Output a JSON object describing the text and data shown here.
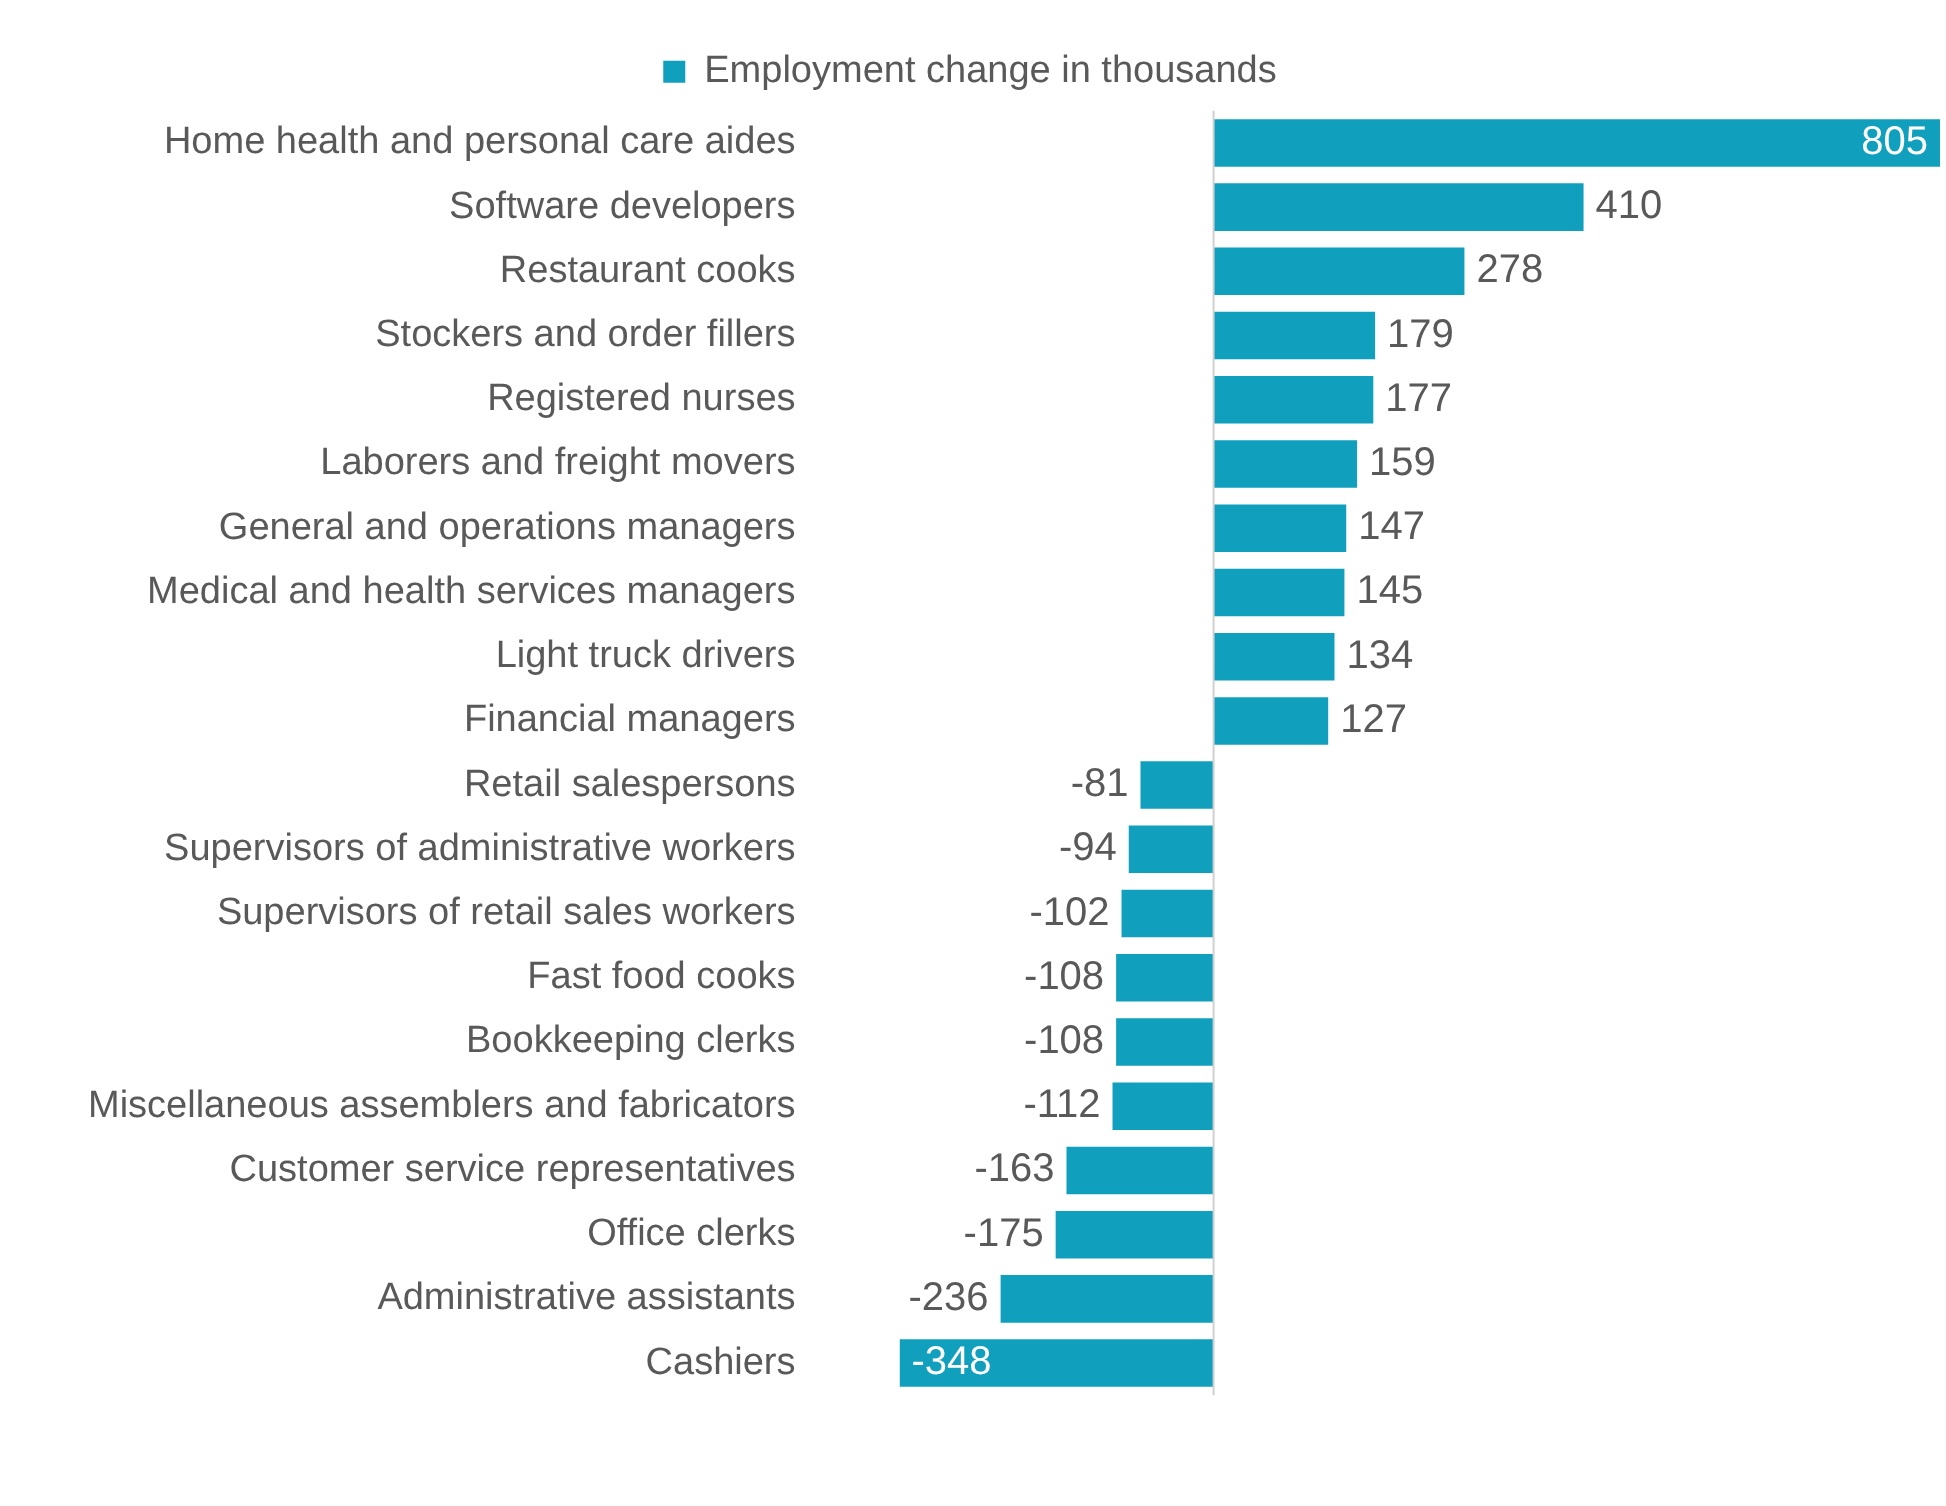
{
  "chart_data": {
    "type": "bar",
    "orientation": "horizontal",
    "categories": [
      "Home health and personal care aides",
      "Software developers",
      "Restaurant cooks",
      "Stockers and order fillers",
      "Registered nurses",
      "Laborers and freight movers",
      "General and operations managers",
      "Medical and health services managers",
      "Light truck drivers",
      "Financial managers",
      "Retail salespersons",
      "Supervisors of administrative workers",
      "Supervisors of retail sales workers",
      "Fast food cooks",
      "Bookkeeping clerks",
      "Miscellaneous assemblers and fabricators",
      "Customer service representatives",
      "Office clerks",
      "Administrative assistants",
      "Cashiers"
    ],
    "series": [
      {
        "name": "Employment change in thousands",
        "color": "#10a0bd",
        "values": [
          805,
          410,
          278,
          179,
          177,
          159,
          147,
          145,
          134,
          127,
          -81,
          -94,
          -102,
          -108,
          -108,
          -112,
          -163,
          -175,
          -236,
          -348
        ]
      }
    ],
    "data_labels": true,
    "legend": "top"
  }
}
